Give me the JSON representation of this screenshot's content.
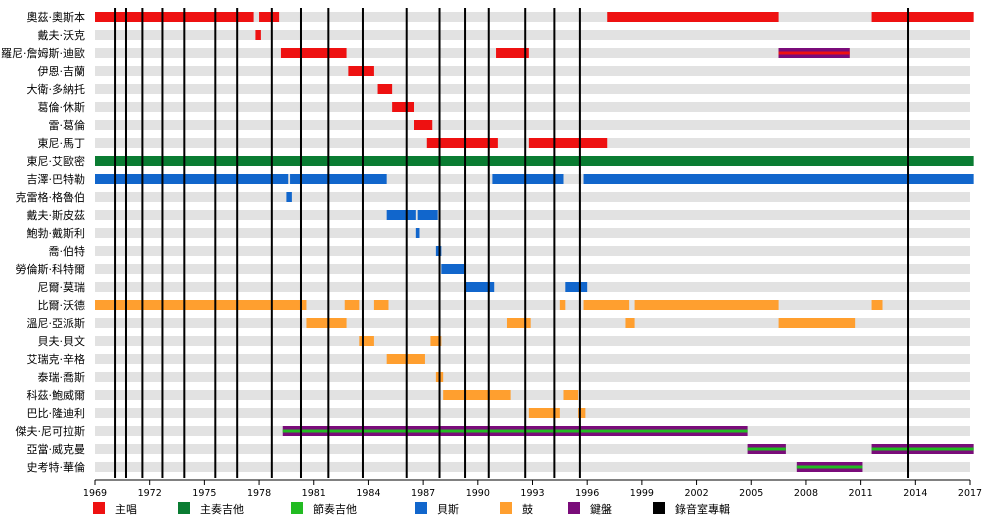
{
  "chart_data": {
    "type": "timeline",
    "x_range": [
      1969,
      2017
    ],
    "x_ticks": [
      "1969",
      "1972",
      "1975",
      "1978",
      "1981",
      "1984",
      "1987",
      "1990",
      "1993",
      "1996",
      "1999",
      "2002",
      "2005",
      "2008",
      "2011",
      "2014",
      "2017"
    ],
    "members": [
      "奧茲·奧斯本",
      "戴夫·沃克",
      "羅尼·詹姆斯·迪歐",
      "伊恩·吉蘭",
      "大衛·多納托",
      "葛倫·休斯",
      "雷·葛倫",
      "東尼·馬丁",
      "東尼·艾歐密",
      "吉澤·巴特勒",
      "克雷格·格魯伯",
      "戴夫·斯皮茲",
      "鮑勃·戴斯利",
      "喬·伯特",
      "勞倫斯·科特爾",
      "尼爾·莫瑞",
      "比爾·沃德",
      "溫尼·亞派斯",
      "貝夫·貝文",
      "艾瑞克·辛格",
      "泰瑞·喬斯",
      "科茲·鮑威爾",
      "巴比·隆迪利",
      "傑夫·尼可拉斯",
      "亞當·威克曼",
      "史考特·華倫"
    ],
    "legend": [
      {
        "key": "vocals",
        "label": "主唱",
        "color": "#ee1111"
      },
      {
        "key": "lead_guitar",
        "label": "主奏吉他",
        "color": "#0a7c32"
      },
      {
        "key": "rhythm_guitar",
        "label": "節奏吉他",
        "color": "#22bb22"
      },
      {
        "key": "bass",
        "label": "貝斯",
        "color": "#1166cc"
      },
      {
        "key": "drums",
        "label": "鼓",
        "color": "#ff9f2f"
      },
      {
        "key": "keyboards",
        "label": "鍵盤",
        "color": "#7a0c7a"
      },
      {
        "key": "studio_album",
        "label": "錄音室專輯",
        "color": "#000000"
      }
    ],
    "albums": [
      1970.1,
      1970.7,
      1971.6,
      1972.7,
      1973.9,
      1975.6,
      1976.8,
      1978.7,
      1980.3,
      1981.8,
      1983.7,
      1986.1,
      1987.9,
      1989.3,
      1990.6,
      1992.6,
      1994.2,
      1995.6,
      2013.6
    ],
    "bars": [
      {
        "row": 0,
        "role": "vocals",
        "start": 1969.0,
        "end": 1977.7
      },
      {
        "row": 0,
        "role": "vocals",
        "start": 1978.0,
        "end": 1979.1
      },
      {
        "row": 0,
        "role": "vocals",
        "start": 1997.1,
        "end": 2006.5
      },
      {
        "row": 0,
        "role": "vocals",
        "start": 2011.6,
        "end": 2017.2
      },
      {
        "row": 1,
        "role": "vocals",
        "start": 1977.8,
        "end": 1978.1
      },
      {
        "row": 2,
        "role": "vocals",
        "start": 1979.2,
        "end": 1982.8
      },
      {
        "row": 2,
        "role": "vocals",
        "start": 1991.0,
        "end": 1992.8
      },
      {
        "row": 2,
        "role": "vocals",
        "start": 2006.5,
        "end": 2010.4
      },
      {
        "row": 2,
        "role": "keyboards",
        "start": 2006.5,
        "end": 2010.4,
        "stripe": true
      },
      {
        "row": 3,
        "role": "vocals",
        "start": 1982.9,
        "end": 1984.3
      },
      {
        "row": 4,
        "role": "vocals",
        "start": 1984.5,
        "end": 1985.3
      },
      {
        "row": 5,
        "role": "vocals",
        "start": 1985.3,
        "end": 1986.5
      },
      {
        "row": 6,
        "role": "vocals",
        "start": 1986.5,
        "end": 1987.5
      },
      {
        "row": 7,
        "role": "vocals",
        "start": 1987.2,
        "end": 1991.1
      },
      {
        "row": 7,
        "role": "vocals",
        "start": 1992.8,
        "end": 1997.1
      },
      {
        "row": 8,
        "role": "lead_guitar",
        "start": 1969.0,
        "end": 2017.2
      },
      {
        "row": 9,
        "role": "bass",
        "start": 1969.0,
        "end": 1979.6
      },
      {
        "row": 9,
        "role": "bass",
        "start": 1979.7,
        "end": 1985.0
      },
      {
        "row": 9,
        "role": "bass",
        "start": 1990.8,
        "end": 1994.7
      },
      {
        "row": 9,
        "role": "bass",
        "start": 1995.8,
        "end": 2017.2
      },
      {
        "row": 10,
        "role": "bass",
        "start": 1979.5,
        "end": 1979.8
      },
      {
        "row": 11,
        "role": "bass",
        "start": 1985.0,
        "end": 1986.6
      },
      {
        "row": 11,
        "role": "bass",
        "start": 1986.7,
        "end": 1987.8
      },
      {
        "row": 12,
        "role": "bass",
        "start": 1986.6,
        "end": 1986.8
      },
      {
        "row": 13,
        "role": "bass",
        "start": 1987.7,
        "end": 1988.0
      },
      {
        "row": 14,
        "role": "bass",
        "start": 1988.0,
        "end": 1989.3
      },
      {
        "row": 15,
        "role": "bass",
        "start": 1989.3,
        "end": 1990.9
      },
      {
        "row": 15,
        "role": "bass",
        "start": 1994.8,
        "end": 1996.0
      },
      {
        "row": 16,
        "role": "drums",
        "start": 1969.0,
        "end": 1980.6
      },
      {
        "row": 16,
        "role": "drums",
        "start": 1982.7,
        "end": 1983.5
      },
      {
        "row": 16,
        "role": "drums",
        "start": 1984.3,
        "end": 1985.1
      },
      {
        "row": 16,
        "role": "drums",
        "start": 1994.5,
        "end": 1994.8
      },
      {
        "row": 16,
        "role": "drums",
        "start": 1995.8,
        "end": 1998.3
      },
      {
        "row": 16,
        "role": "drums",
        "start": 1998.6,
        "end": 2006.5
      },
      {
        "row": 16,
        "role": "drums",
        "start": 2011.6,
        "end": 2012.2
      },
      {
        "row": 17,
        "role": "drums",
        "start": 1980.6,
        "end": 1982.8
      },
      {
        "row": 17,
        "role": "drums",
        "start": 1991.6,
        "end": 1992.9
      },
      {
        "row": 17,
        "role": "drums",
        "start": 1998.1,
        "end": 1998.6
      },
      {
        "row": 17,
        "role": "drums",
        "start": 2006.5,
        "end": 2010.7
      },
      {
        "row": 18,
        "role": "drums",
        "start": 1983.5,
        "end": 1984.3
      },
      {
        "row": 18,
        "role": "drums",
        "start": 1987.4,
        "end": 1988.0
      },
      {
        "row": 19,
        "role": "drums",
        "start": 1985.0,
        "end": 1987.1
      },
      {
        "row": 20,
        "role": "drums",
        "start": 1987.7,
        "end": 1988.1
      },
      {
        "row": 21,
        "role": "drums",
        "start": 1988.1,
        "end": 1991.8
      },
      {
        "row": 21,
        "role": "drums",
        "start": 1994.7,
        "end": 1995.5
      },
      {
        "row": 22,
        "role": "drums",
        "start": 1992.8,
        "end": 1994.5
      },
      {
        "row": 22,
        "role": "drums",
        "start": 1995.5,
        "end": 1995.9
      },
      {
        "row": 23,
        "role": "keyboards",
        "start": 1979.3,
        "end": 2004.8,
        "stripe": true
      },
      {
        "row": 24,
        "role": "keyboards",
        "start": 2004.8,
        "end": 2006.9,
        "stripe": true
      },
      {
        "row": 24,
        "role": "keyboards",
        "start": 2011.6,
        "end": 2017.2,
        "stripe": true
      },
      {
        "row": 25,
        "role": "keyboards",
        "start": 2007.5,
        "end": 2011.1,
        "stripe": true
      }
    ]
  }
}
